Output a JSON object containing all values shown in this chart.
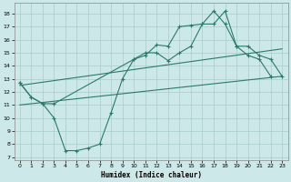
{
  "xlabel": "Humidex (Indice chaleur)",
  "bg_color": "#cce8e8",
  "grid_color": "#aacccc",
  "line_color": "#2a7a6a",
  "xlim": [
    -0.5,
    23.5
  ],
  "ylim": [
    6.8,
    18.8
  ],
  "xtick_labels": [
    "0",
    "1",
    "2",
    "3",
    "4",
    "5",
    "6",
    "7",
    "8",
    "9",
    "10",
    "11",
    "12",
    "13",
    "14",
    "15",
    "16",
    "17",
    "18",
    "19",
    "20",
    "21",
    "22",
    "23"
  ],
  "xtick_pos": [
    0,
    1,
    2,
    3,
    4,
    5,
    6,
    7,
    8,
    9,
    10,
    11,
    12,
    13,
    14,
    15,
    16,
    17,
    18,
    19,
    20,
    21,
    22,
    23
  ],
  "yticks": [
    7,
    8,
    9,
    10,
    11,
    12,
    13,
    14,
    15,
    16,
    17,
    18
  ],
  "line1_x": [
    0,
    1,
    2,
    3,
    4,
    5,
    6,
    7,
    8,
    9,
    10,
    11,
    12,
    13,
    14,
    15,
    16,
    17,
    18,
    19,
    20,
    21,
    22
  ],
  "line1_y": [
    12.7,
    11.6,
    11.1,
    10.0,
    7.5,
    7.5,
    7.7,
    8.0,
    10.4,
    13.0,
    14.5,
    14.8,
    15.6,
    15.5,
    17.0,
    17.1,
    17.2,
    18.2,
    17.2,
    15.5,
    14.8,
    14.5,
    13.2
  ],
  "line2_x": [
    0,
    1,
    2,
    3,
    10,
    11,
    12,
    13,
    14,
    15,
    16,
    17,
    18,
    19,
    20,
    21,
    22,
    23
  ],
  "line2_y": [
    12.7,
    11.6,
    11.1,
    11.1,
    14.5,
    15.0,
    15.0,
    14.4,
    15.0,
    15.5,
    17.2,
    17.2,
    18.2,
    15.5,
    15.5,
    14.8,
    14.5,
    13.2
  ],
  "line3_x": [
    0,
    23
  ],
  "line3_y": [
    11.0,
    13.2
  ],
  "line4_x": [
    0,
    23
  ],
  "line4_y": [
    12.5,
    15.3
  ]
}
